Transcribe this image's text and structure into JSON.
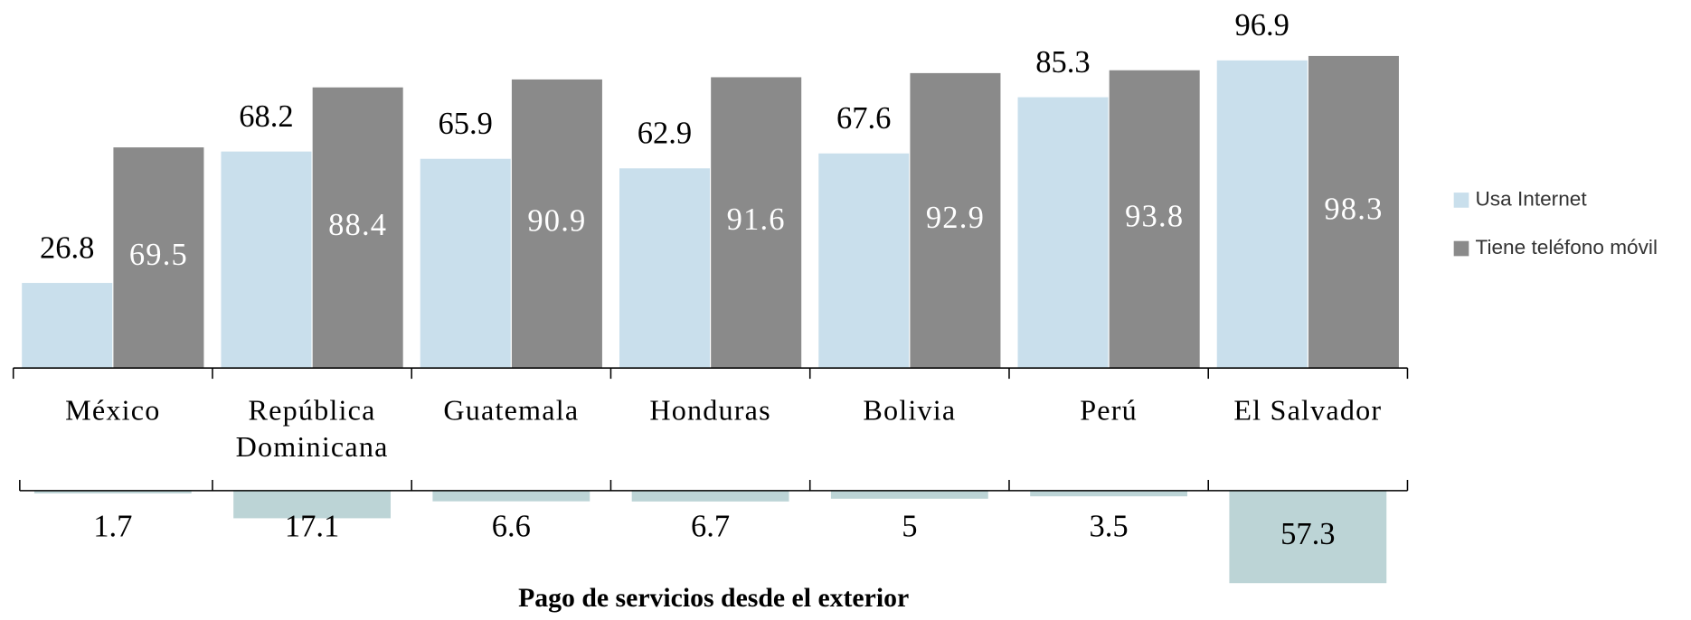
{
  "chart_data": [
    {
      "type": "bar",
      "categories": [
        "México",
        "República Dominicana",
        "Guatemala",
        "Honduras",
        "Bolivia",
        "Perú",
        "El Salvador"
      ],
      "series": [
        {
          "name": "Usa Internet",
          "color": "#c9dfec",
          "values": [
            26.8,
            68.2,
            65.9,
            62.9,
            67.6,
            85.3,
            96.9
          ]
        },
        {
          "name": "Tiene teléfono móvil",
          "color": "#8a8a8a",
          "values": [
            69.5,
            88.4,
            90.9,
            91.6,
            92.9,
            93.8,
            98.3
          ]
        }
      ],
      "ylim": [
        0,
        100
      ],
      "legend": "right"
    },
    {
      "type": "bar",
      "title": "Pago de servicios desde el exterior",
      "values": [
        1.7,
        17.1,
        6.6,
        6.7,
        5,
        3.5,
        57.3
      ],
      "color": "#bcd4d6",
      "ylim": [
        0,
        60
      ],
      "direction": "down"
    }
  ]
}
